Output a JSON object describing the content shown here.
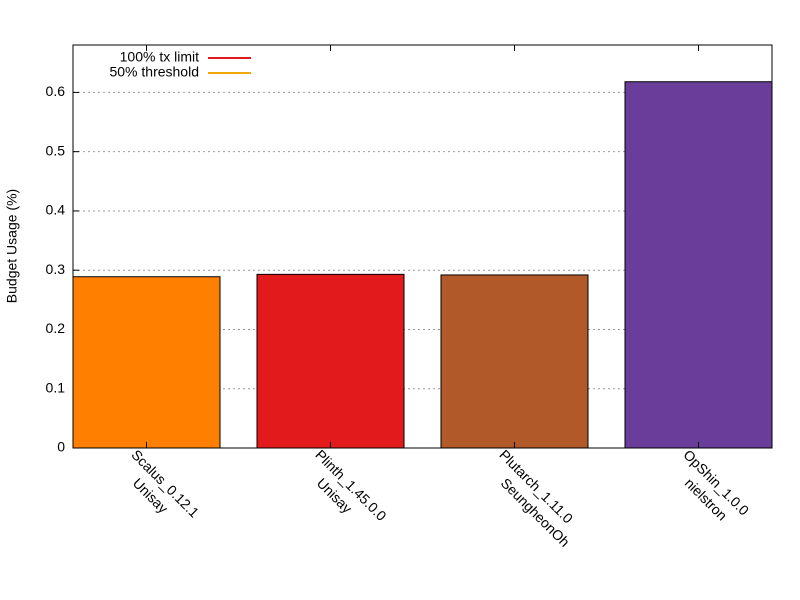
{
  "chart_data": {
    "type": "bar",
    "y_label": "Budget Usage (%)",
    "categories": [
      [
        "Scalus_0.12.1",
        "Unisay"
      ],
      [
        "Plinth_1.45.0.0",
        "Unisay"
      ],
      [
        "Plutarch_1.11.0",
        "SeungheonOh"
      ],
      [
        "OpShin_1.0.0",
        "nielstron"
      ]
    ],
    "values": [
      0.289,
      0.293,
      0.292,
      0.618
    ],
    "colors": [
      "#ff7f00",
      "#e31a1c",
      "#b15928",
      "#6a3d9a"
    ],
    "ylim": [
      0,
      0.68
    ],
    "yticks": [
      0,
      0.1,
      0.2,
      0.3,
      0.4,
      0.5,
      0.6
    ],
    "grid": true,
    "legend": {
      "position": "top-left",
      "entries": [
        {
          "name": "100% tx limit",
          "color": "#e31a1c"
        },
        {
          "name": "50% threshold",
          "color": "#f0a800"
        }
      ]
    }
  }
}
